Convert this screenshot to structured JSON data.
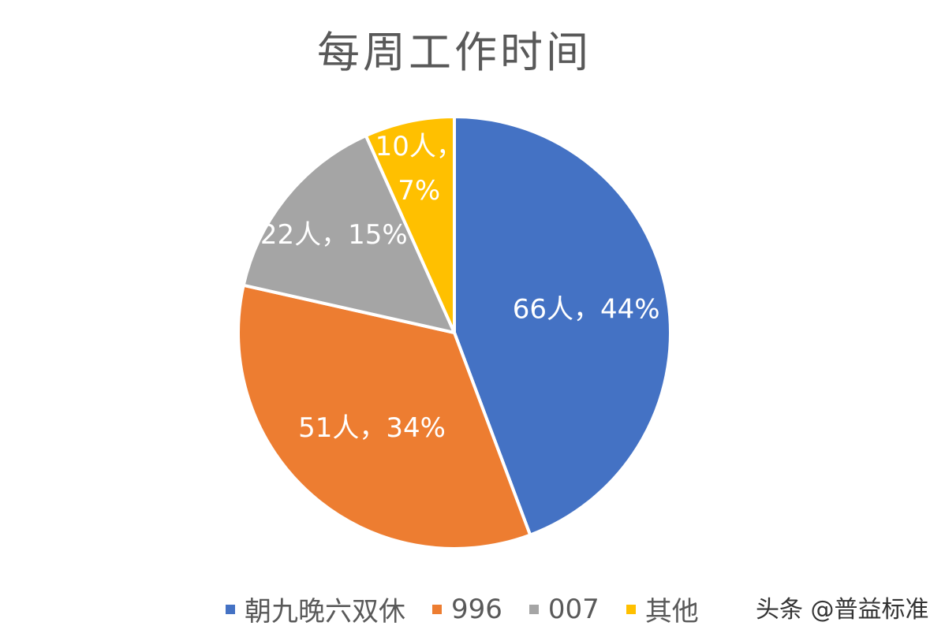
{
  "chart_data": {
    "type": "pie",
    "title": "每周工作时间",
    "slices": [
      {
        "name": "朝九晚六双休",
        "value": 66,
        "percent": 44,
        "label": "66人，44%",
        "color": "#4472C4"
      },
      {
        "name": "996",
        "value": 51,
        "percent": 34,
        "label": "51人，34%",
        "color": "#ED7D31"
      },
      {
        "name": "007",
        "value": 22,
        "percent": 15,
        "label": "22人，15%",
        "color": "#A5A5A5"
      },
      {
        "name": "其他",
        "value": 10,
        "percent": 7,
        "label_lines": [
          "10人，",
          "7%"
        ],
        "color": "#FFC000"
      }
    ],
    "legend_position": "bottom",
    "start_angle": "12 o'clock, clockwise"
  },
  "watermark": "头条 @普益标准"
}
